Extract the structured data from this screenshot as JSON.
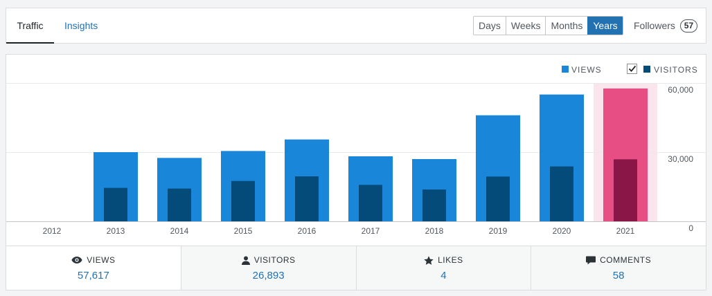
{
  "tabs": {
    "traffic": "Traffic",
    "insights": "Insights"
  },
  "period": {
    "options": [
      "Days",
      "Weeks",
      "Months",
      "Years"
    ],
    "selected": "Years"
  },
  "followers": {
    "label": "Followers",
    "count": "57"
  },
  "colors": {
    "views": "#1a86d9",
    "visitors": "#044b7a",
    "highlight_views": "#e64e84",
    "highlight_visitors": "#8a1648",
    "highlight_band": "#fbe5ec",
    "accent": "#2271b1"
  },
  "chart_data": {
    "type": "bar",
    "categories": [
      "2012",
      "2013",
      "2014",
      "2015",
      "2016",
      "2017",
      "2018",
      "2019",
      "2020",
      "2021"
    ],
    "series": [
      {
        "name": "VIEWS",
        "values": [
          0,
          30000,
          27500,
          30500,
          35500,
          28200,
          27000,
          46000,
          55000,
          57617
        ]
      },
      {
        "name": "VISITORS",
        "values": [
          0,
          14500,
          14200,
          17500,
          19500,
          15800,
          13800,
          19400,
          23800,
          26893
        ]
      }
    ],
    "highlighted": "2021",
    "ylim": [
      0,
      60000
    ],
    "yticks": [
      "0",
      "30,000",
      "60,000"
    ],
    "ytick_values": [
      0,
      30000,
      60000
    ],
    "legend": {
      "position": "top-right",
      "visitors_checked": true
    },
    "grid": true
  },
  "summary": [
    {
      "key": "views",
      "label": "VIEWS",
      "value": "57,617",
      "icon": "eye-icon"
    },
    {
      "key": "visitors",
      "label": "VISITORS",
      "value": "26,893",
      "icon": "person-icon"
    },
    {
      "key": "likes",
      "label": "LIKES",
      "value": "4",
      "icon": "star-icon"
    },
    {
      "key": "comments",
      "label": "COMMENTS",
      "value": "58",
      "icon": "comment-icon"
    }
  ]
}
